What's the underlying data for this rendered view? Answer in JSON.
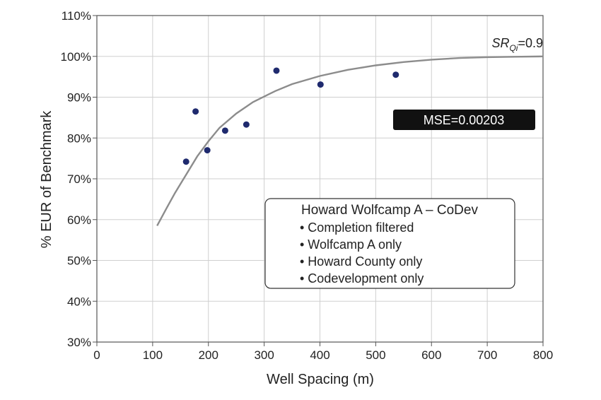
{
  "chart_data": {
    "type": "scatter",
    "title": "",
    "xlabel": "Well Spacing (m)",
    "ylabel": "% EUR of Benchmark",
    "xlim": [
      0,
      800
    ],
    "ylim": [
      30,
      110
    ],
    "x_ticks": [
      0,
      100,
      200,
      300,
      400,
      500,
      600,
      700,
      800
    ],
    "x_tick_labels": [
      "0",
      "100",
      "200",
      "300",
      "400",
      "500",
      "600",
      "700",
      "800"
    ],
    "y_ticks": [
      30,
      40,
      50,
      60,
      70,
      80,
      90,
      100,
      110
    ],
    "y_tick_labels": [
      "30%",
      "40%",
      "50%",
      "60%",
      "70%",
      "80%",
      "90%",
      "100%",
      "110%"
    ],
    "grid": true,
    "series": [
      {
        "kind": "scatter",
        "color": "#1f2a6e",
        "points": [
          {
            "x": 160,
            "y": 74.2
          },
          {
            "x": 177,
            "y": 86.5
          },
          {
            "x": 198,
            "y": 77.0
          },
          {
            "x": 230,
            "y": 81.8
          },
          {
            "x": 268,
            "y": 83.3
          },
          {
            "x": 322,
            "y": 96.5
          },
          {
            "x": 401,
            "y": 93.1
          },
          {
            "x": 536,
            "y": 95.5
          }
        ]
      },
      {
        "kind": "line",
        "color": "#8c8c8c",
        "points": [
          {
            "x": 108,
            "y": 58.5
          },
          {
            "x": 125,
            "y": 62.8
          },
          {
            "x": 140,
            "y": 66.5
          },
          {
            "x": 160,
            "y": 71.0
          },
          {
            "x": 180,
            "y": 75.5
          },
          {
            "x": 200,
            "y": 79.2
          },
          {
            "x": 220,
            "y": 82.5
          },
          {
            "x": 250,
            "y": 86.0
          },
          {
            "x": 280,
            "y": 88.8
          },
          {
            "x": 320,
            "y": 91.5
          },
          {
            "x": 350,
            "y": 93.2
          },
          {
            "x": 400,
            "y": 95.2
          },
          {
            "x": 450,
            "y": 96.7
          },
          {
            "x": 500,
            "y": 97.8
          },
          {
            "x": 550,
            "y": 98.6
          },
          {
            "x": 600,
            "y": 99.2
          },
          {
            "x": 650,
            "y": 99.6
          },
          {
            "x": 700,
            "y": 99.8
          },
          {
            "x": 750,
            "y": 99.9
          },
          {
            "x": 800,
            "y": 100.0
          }
        ]
      }
    ],
    "annotations": {
      "curve_label": {
        "main": "SR",
        "sub": "Qi",
        "suffix": "=0.9"
      },
      "mse_label": "MSE=0.00203",
      "legend_title": "Howard Wolfcamp A – CoDev",
      "legend_items": [
        "• Completion filtered",
        "• Wolfcamp A only",
        "• Howard County only",
        "• Codevelopment only"
      ]
    }
  }
}
